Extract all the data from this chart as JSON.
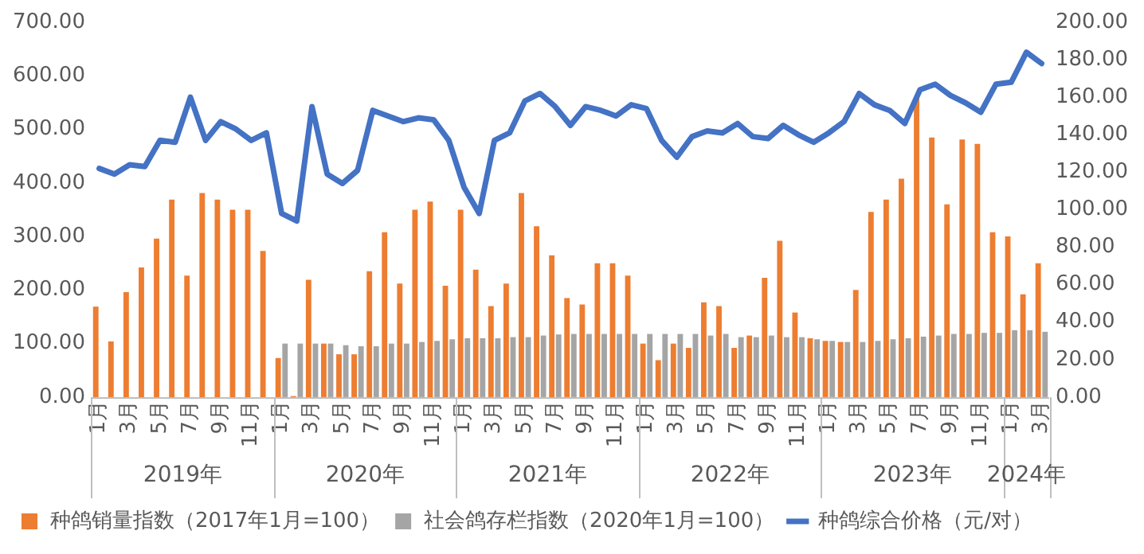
{
  "chart_data": {
    "type": "bar",
    "categories": [
      "1月",
      null,
      "3月",
      null,
      "5月",
      null,
      "7月",
      null,
      "9月",
      null,
      "11月",
      null,
      "1月",
      null,
      "3月",
      null,
      "5月",
      null,
      "7月",
      null,
      "9月",
      null,
      "11月",
      null,
      "1月",
      null,
      "3月",
      null,
      "5月",
      null,
      "7月",
      null,
      "9月",
      null,
      "11月",
      null,
      "1月",
      null,
      "3月",
      null,
      "5月",
      null,
      "7月",
      null,
      "9月",
      null,
      "11月",
      null,
      "1月",
      null,
      "3月",
      null,
      "5月",
      null,
      "7月",
      null,
      "9月",
      null,
      "11月",
      null,
      "1月",
      null,
      "3月"
    ],
    "annotations": [
      "2019年",
      "2020年",
      "2021年",
      "2022年",
      "2023年",
      "2024年"
    ],
    "series": [
      {
        "name": "种鸽销量指数（2017年1月=100）",
        "color": "#ed7d31",
        "values": [
          169,
          104,
          196,
          242,
          296,
          369,
          227,
          381,
          369,
          350,
          350,
          273,
          73,
          2,
          219,
          100,
          80,
          80,
          235,
          308,
          212,
          350,
          365,
          208,
          350,
          238,
          170,
          212,
          381,
          319,
          265,
          185,
          173,
          250,
          250,
          227,
          100,
          69,
          100,
          92,
          177,
          170,
          92,
          115,
          223,
          292,
          158,
          110,
          105,
          103,
          200,
          346,
          369,
          408,
          560,
          485,
          360,
          481,
          473,
          308,
          300,
          192,
          250
        ]
      },
      {
        "name": "社会鸽存栏指数（2020年1月=100）",
        "color": "#a5a5a5",
        "values": [
          null,
          null,
          null,
          null,
          null,
          null,
          null,
          null,
          null,
          null,
          null,
          null,
          100,
          100,
          100,
          100,
          97,
          95,
          95,
          100,
          100,
          103,
          105,
          108,
          110,
          110,
          110,
          112,
          112,
          115,
          117,
          118,
          118,
          118,
          118,
          118,
          118,
          118,
          118,
          118,
          115,
          118,
          112,
          112,
          115,
          112,
          112,
          108,
          105,
          103,
          103,
          105,
          108,
          110,
          113,
          115,
          118,
          118,
          120,
          120,
          125,
          125,
          122
        ]
      },
      {
        "name": "种鸽综合价格（元/对）",
        "type": "line",
        "axis": "y2",
        "color": "#4472c4",
        "values": [
          122,
          119,
          124,
          123,
          137,
          136,
          160,
          137,
          147,
          143,
          137,
          141,
          98,
          94,
          155,
          119,
          114,
          121,
          153,
          150,
          147,
          149,
          148,
          137,
          112,
          98,
          137,
          141,
          158,
          162,
          155,
          145,
          155,
          153,
          150,
          156,
          154,
          137,
          128,
          139,
          142,
          141,
          146,
          139,
          138,
          145,
          140,
          136,
          141,
          147,
          162,
          156,
          153,
          146,
          164,
          167,
          161,
          157,
          152,
          167,
          168,
          184,
          178
        ]
      }
    ],
    "ylim": [
      0,
      700
    ],
    "yticks": [
      {
        "value": 0,
        "label": "0.00"
      },
      {
        "value": 100,
        "label": "100.00"
      },
      {
        "value": 200,
        "label": "200.00"
      },
      {
        "value": 300,
        "label": "300.00"
      },
      {
        "value": 400,
        "label": "400.00"
      },
      {
        "value": 500,
        "label": "500.00"
      },
      {
        "value": 600,
        "label": "600.00"
      },
      {
        "value": 700,
        "label": "700.00"
      }
    ],
    "y2lim": [
      0,
      200
    ],
    "y2ticks": [
      {
        "value": 0,
        "label": "0.00"
      },
      {
        "value": 20,
        "label": "20.00"
      },
      {
        "value": 40,
        "label": "40.00"
      },
      {
        "value": 60,
        "label": "60.00"
      },
      {
        "value": 80,
        "label": "80.00"
      },
      {
        "value": 100,
        "label": "100.00"
      },
      {
        "value": 120,
        "label": "120.00"
      },
      {
        "value": 140,
        "label": "140.00"
      },
      {
        "value": 160,
        "label": "160.00"
      },
      {
        "value": 180,
        "label": "180.00"
      },
      {
        "value": 200,
        "label": "200.00"
      }
    ],
    "grid": false,
    "legend": "bottom",
    "marker": "none",
    "line_style": "solid"
  }
}
